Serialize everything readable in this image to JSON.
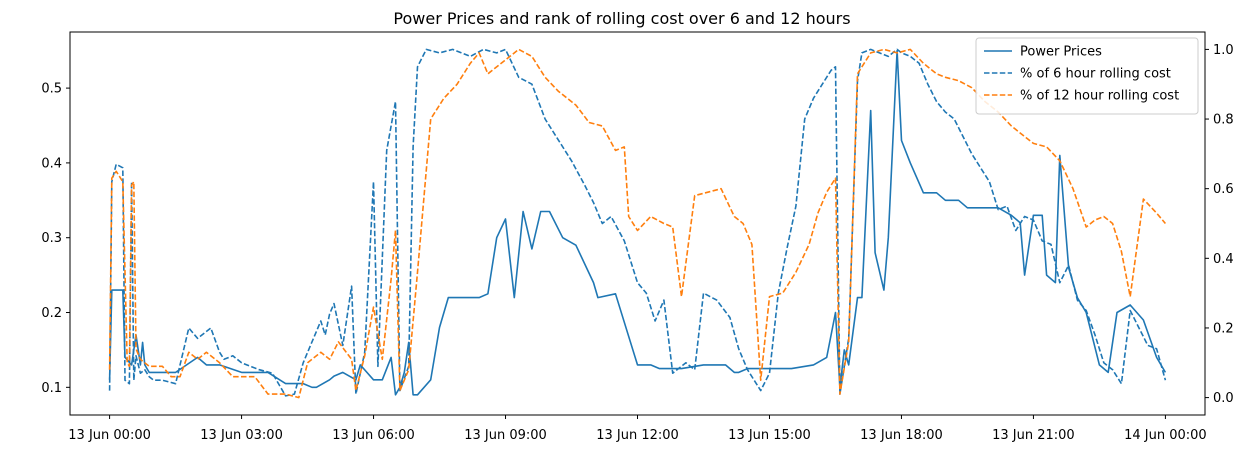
{
  "chart_data": {
    "type": "line",
    "title": "Power Prices and rank of rolling cost over 6 and 12 hours",
    "xlabel": "",
    "ylabel": "",
    "x_unit": "hours from 13 Jun 00:00",
    "xlim": [
      -0.9,
      24.9
    ],
    "ylim": [
      0.063,
      0.575
    ],
    "y2lim": [
      -0.05,
      1.05
    ],
    "x_ticks": [
      {
        "x": 0,
        "label": "13 Jun 00:00"
      },
      {
        "x": 3,
        "label": "13 Jun 03:00"
      },
      {
        "x": 6,
        "label": "13 Jun 06:00"
      },
      {
        "x": 9,
        "label": "13 Jun 09:00"
      },
      {
        "x": 12,
        "label": "13 Jun 12:00"
      },
      {
        "x": 15,
        "label": "13 Jun 15:00"
      },
      {
        "x": 18,
        "label": "13 Jun 18:00"
      },
      {
        "x": 21,
        "label": "13 Jun 21:00"
      },
      {
        "x": 24,
        "label": "14 Jun 00:00"
      }
    ],
    "y_ticks": [
      {
        "y": 0.1,
        "label": "0.1"
      },
      {
        "y": 0.2,
        "label": "0.2"
      },
      {
        "y": 0.3,
        "label": "0.3"
      },
      {
        "y": 0.4,
        "label": "0.4"
      },
      {
        "y": 0.5,
        "label": "0.5"
      }
    ],
    "y2_ticks": [
      {
        "y": 0.0,
        "label": "0.0"
      },
      {
        "y": 0.2,
        "label": "0.2"
      },
      {
        "y": 0.4,
        "label": "0.4"
      },
      {
        "y": 0.6,
        "label": "0.6"
      },
      {
        "y": 0.8,
        "label": "0.8"
      },
      {
        "y": 1.0,
        "label": "1.0"
      }
    ],
    "legend_position": "top-right",
    "grid": false,
    "series": [
      {
        "name": "Power Prices",
        "axis": "left",
        "color": "#1f77b4",
        "dash": "solid",
        "x": [
          0,
          0.05,
          0.3,
          0.35,
          0.5,
          0.6,
          0.7,
          0.75,
          0.8,
          0.9,
          1.0,
          1.2,
          1.5,
          2.0,
          2.2,
          2.5,
          3.0,
          3.2,
          3.6,
          4.0,
          4.4,
          4.6,
          4.7,
          5.0,
          5.1,
          5.3,
          5.6,
          5.7,
          6.0,
          6.2,
          6.4,
          6.5,
          6.6,
          6.7,
          6.8,
          6.9,
          7.0,
          7.3,
          7.5,
          7.7,
          8.0,
          8.4,
          8.6,
          8.8,
          9.0,
          9.2,
          9.4,
          9.6,
          9.8,
          10.0,
          10.3,
          10.6,
          11.0,
          11.1,
          11.5,
          12.0,
          12.3,
          12.5,
          12.8,
          13.0,
          13.5,
          14.0,
          14.2,
          14.3,
          14.5,
          14.8,
          15.0,
          15.2,
          15.5,
          16.0,
          16.3,
          16.5,
          16.6,
          16.7,
          16.8,
          17.0,
          17.1,
          17.3,
          17.4,
          17.6,
          17.7,
          17.9,
          18.0,
          18.2,
          18.5,
          18.8,
          19.0,
          19.3,
          19.5,
          19.8,
          20.0,
          20.2,
          20.5,
          20.7,
          20.8,
          21.0,
          21.2,
          21.3,
          21.5,
          21.6,
          21.8,
          22.0,
          22.2,
          22.5,
          22.7,
          22.9,
          23.2,
          23.5,
          23.8,
          24.0
        ],
        "y": [
          0.11,
          0.23,
          0.23,
          0.14,
          0.13,
          0.17,
          0.13,
          0.16,
          0.13,
          0.12,
          0.12,
          0.12,
          0.12,
          0.14,
          0.13,
          0.13,
          0.12,
          0.12,
          0.12,
          0.105,
          0.105,
          0.1,
          0.1,
          0.11,
          0.115,
          0.12,
          0.11,
          0.13,
          0.11,
          0.11,
          0.14,
          0.09,
          0.1,
          0.12,
          0.16,
          0.09,
          0.09,
          0.11,
          0.18,
          0.22,
          0.22,
          0.22,
          0.225,
          0.3,
          0.325,
          0.22,
          0.335,
          0.285,
          0.335,
          0.335,
          0.3,
          0.29,
          0.24,
          0.22,
          0.225,
          0.13,
          0.13,
          0.125,
          0.125,
          0.125,
          0.13,
          0.13,
          0.12,
          0.12,
          0.125,
          0.125,
          0.125,
          0.125,
          0.125,
          0.13,
          0.14,
          0.2,
          0.1,
          0.15,
          0.13,
          0.22,
          0.22,
          0.47,
          0.28,
          0.23,
          0.3,
          0.55,
          0.43,
          0.4,
          0.36,
          0.36,
          0.35,
          0.35,
          0.34,
          0.34,
          0.34,
          0.34,
          0.33,
          0.32,
          0.25,
          0.33,
          0.33,
          0.25,
          0.24,
          0.41,
          0.26,
          0.22,
          0.2,
          0.13,
          0.12,
          0.2,
          0.21,
          0.19,
          0.14,
          0.12
        ]
      },
      {
        "name": "% of 6 hour rolling cost",
        "axis": "right",
        "color": "#1f77b4",
        "dash": "dashed",
        "x": [
          0,
          0.05,
          0.15,
          0.3,
          0.35,
          0.45,
          0.5,
          0.55,
          0.6,
          0.7,
          0.8,
          0.9,
          1.0,
          1.2,
          1.5,
          1.8,
          2.0,
          2.3,
          2.5,
          2.6,
          2.8,
          3.0,
          3.2,
          3.4,
          3.7,
          4.0,
          4.2,
          4.4,
          4.5,
          4.8,
          4.9,
          5.0,
          5.1,
          5.3,
          5.5,
          5.6,
          5.8,
          6.0,
          6.1,
          6.3,
          6.5,
          6.6,
          6.8,
          6.9,
          7.0,
          7.2,
          7.5,
          7.8,
          8.2,
          8.5,
          8.8,
          9.0,
          9.3,
          9.6,
          9.9,
          10.2,
          10.5,
          10.8,
          11.0,
          11.2,
          11.4,
          11.7,
          12.0,
          12.2,
          12.4,
          12.6,
          12.8,
          13.1,
          13.3,
          13.5,
          13.8,
          14.1,
          14.3,
          14.5,
          14.8,
          15.0,
          15.2,
          15.4,
          15.6,
          15.8,
          16.0,
          16.2,
          16.4,
          16.5,
          16.6,
          16.8,
          17.0,
          17.1,
          17.3,
          17.5,
          17.7,
          17.9,
          18.0,
          18.2,
          18.4,
          18.6,
          18.8,
          19.0,
          19.2,
          19.4,
          19.6,
          19.8,
          20.0,
          20.2,
          20.4,
          20.6,
          20.8,
          21.0,
          21.2,
          21.4,
          21.6,
          21.8,
          22.0,
          22.2,
          22.4,
          22.6,
          22.8,
          23.0,
          23.2,
          23.4,
          23.6,
          23.8,
          24.0
        ],
        "y": [
          0.02,
          0.62,
          0.67,
          0.66,
          0.05,
          0.04,
          0.62,
          0.05,
          0.12,
          0.07,
          0.08,
          0.06,
          0.05,
          0.05,
          0.04,
          0.2,
          0.17,
          0.2,
          0.13,
          0.11,
          0.12,
          0.1,
          0.09,
          0.08,
          0.07,
          0.005,
          0.01,
          0.1,
          0.13,
          0.22,
          0.18,
          0.24,
          0.27,
          0.15,
          0.32,
          0.01,
          0.13,
          0.62,
          0.09,
          0.71,
          0.85,
          0.02,
          0.09,
          0.72,
          0.95,
          1.0,
          0.99,
          1.0,
          0.98,
          1.0,
          0.99,
          1.0,
          0.92,
          0.9,
          0.8,
          0.74,
          0.68,
          0.61,
          0.56,
          0.5,
          0.52,
          0.45,
          0.33,
          0.3,
          0.22,
          0.28,
          0.07,
          0.1,
          0.08,
          0.3,
          0.28,
          0.23,
          0.14,
          0.08,
          0.02,
          0.07,
          0.3,
          0.43,
          0.55,
          0.8,
          0.86,
          0.9,
          0.94,
          0.95,
          0.01,
          0.17,
          0.91,
          0.99,
          1.0,
          0.99,
          0.98,
          1.0,
          0.99,
          0.98,
          0.96,
          0.9,
          0.85,
          0.82,
          0.8,
          0.75,
          0.7,
          0.66,
          0.62,
          0.54,
          0.55,
          0.48,
          0.52,
          0.51,
          0.45,
          0.44,
          0.33,
          0.38,
          0.28,
          0.25,
          0.18,
          0.1,
          0.08,
          0.04,
          0.25,
          0.2,
          0.15,
          0.14,
          0.05
        ]
      },
      {
        "name": "% of 12 hour rolling cost",
        "axis": "right",
        "color": "#ff7f0e",
        "dash": "dashed",
        "x": [
          0,
          0.05,
          0.15,
          0.3,
          0.4,
          0.45,
          0.5,
          0.55,
          0.6,
          0.7,
          0.9,
          1.2,
          1.4,
          1.6,
          1.8,
          2.0,
          2.2,
          2.5,
          2.8,
          3.0,
          3.3,
          3.6,
          4.0,
          4.3,
          4.5,
          4.8,
          5.0,
          5.2,
          5.5,
          5.6,
          5.8,
          6.0,
          6.2,
          6.4,
          6.5,
          6.6,
          6.8,
          7.0,
          7.3,
          7.6,
          7.9,
          8.2,
          8.4,
          8.6,
          9.0,
          9.3,
          9.6,
          9.9,
          10.2,
          10.6,
          10.9,
          11.2,
          11.5,
          11.7,
          11.8,
          12.0,
          12.3,
          12.6,
          12.8,
          13.0,
          13.3,
          13.6,
          13.9,
          14.2,
          14.4,
          14.6,
          14.8,
          15.0,
          15.3,
          15.6,
          15.9,
          16.1,
          16.3,
          16.5,
          16.6,
          16.8,
          17.0,
          17.3,
          17.6,
          17.9,
          18.2,
          18.5,
          18.8,
          19.0,
          19.3,
          19.6,
          19.9,
          20.2,
          20.5,
          20.8,
          21.0,
          21.3,
          21.6,
          21.9,
          22.2,
          22.4,
          22.6,
          22.8,
          23.0,
          23.2,
          23.5,
          23.8,
          24.0
        ],
        "y": [
          0.08,
          0.63,
          0.65,
          0.62,
          0.1,
          0.09,
          0.61,
          0.62,
          0.14,
          0.11,
          0.09,
          0.09,
          0.06,
          0.06,
          0.13,
          0.11,
          0.13,
          0.1,
          0.06,
          0.06,
          0.06,
          0.01,
          0.01,
          0.0,
          0.1,
          0.13,
          0.11,
          0.16,
          0.11,
          0.02,
          0.12,
          0.26,
          0.11,
          0.34,
          0.48,
          0.02,
          0.08,
          0.36,
          0.8,
          0.86,
          0.9,
          0.96,
          0.99,
          0.93,
          0.97,
          1.0,
          0.98,
          0.92,
          0.88,
          0.84,
          0.79,
          0.78,
          0.71,
          0.72,
          0.52,
          0.48,
          0.52,
          0.5,
          0.49,
          0.29,
          0.58,
          0.59,
          0.6,
          0.52,
          0.5,
          0.44,
          0.05,
          0.29,
          0.3,
          0.36,
          0.44,
          0.53,
          0.59,
          0.63,
          0.01,
          0.16,
          0.93,
          0.99,
          1.0,
          0.99,
          1.0,
          0.96,
          0.93,
          0.92,
          0.91,
          0.89,
          0.85,
          0.82,
          0.78,
          0.75,
          0.73,
          0.72,
          0.68,
          0.6,
          0.49,
          0.51,
          0.52,
          0.5,
          0.42,
          0.29,
          0.57,
          0.53,
          0.5
        ]
      }
    ]
  }
}
